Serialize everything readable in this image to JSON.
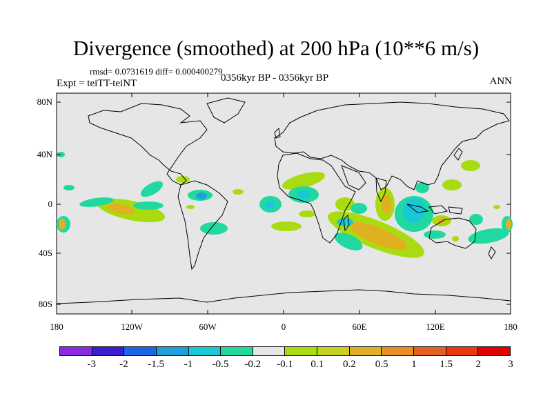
{
  "title": "Divergence (smoothed) at 200 hPa (10**6 m/s)",
  "stats": "rmsd= 0.0731619  diff= 0.000400279",
  "expt": "Expt = teiTT-teiNT",
  "period": "0356kyr BP - 0356kyr BP",
  "season": "ANN",
  "y_ticks": [
    "80N",
    "40N",
    "0",
    "40S",
    "80S"
  ],
  "x_ticks": [
    "180",
    "120W",
    "60W",
    "0",
    "60E",
    "120E",
    "180"
  ],
  "colorbar": {
    "colors": [
      "#8a2be2",
      "#3a1fd0",
      "#1e64e6",
      "#1ca0dc",
      "#18c8d8",
      "#20d8a0",
      "#e6e6e6",
      "#a8dc10",
      "#c8d020",
      "#e0b020",
      "#e89020",
      "#e86020",
      "#e83a10",
      "#e00000"
    ],
    "labels": [
      "-3",
      "-2",
      "-1.5",
      "-1",
      "-0.5",
      "-0.2",
      "-0.1",
      "0.1",
      "0.2",
      "0.5",
      "1",
      "1.5",
      "2",
      "3"
    ]
  }
}
